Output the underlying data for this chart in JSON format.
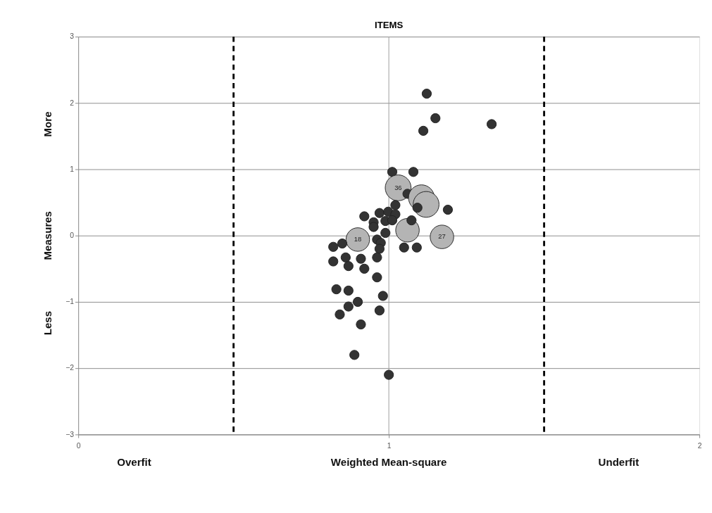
{
  "chart_data": {
    "type": "bubble",
    "title": "ITEMS",
    "xlabel": "Weighted Mean-square",
    "ylabel": "Measures",
    "annotations": [
      "More",
      "Less",
      "Overfit",
      "Underfit",
      {
        "text": "36",
        "x": 1.03,
        "y": 0.72
      },
      {
        "text": "27",
        "x": 1.171,
        "y": -0.02
      },
      {
        "text": "18",
        "x": 0.9,
        "y": -0.06
      }
    ],
    "x": [
      1.122,
      1.15,
      1.111,
      1.331,
      1.011,
      1.079,
      1.03,
      1.06,
      1.105,
      1.12,
      1.092,
      1.19,
      1.021,
      0.921,
      0.97,
      0.998,
      1.021,
      0.989,
      1.011,
      0.951,
      0.951,
      0.989,
      1.06,
      1.073,
      1.171,
      0.9,
      0.962,
      0.974,
      0.97,
      0.85,
      0.821,
      1.049,
      1.09,
      0.861,
      0.91,
      0.962,
      0.821,
      0.87,
      0.921,
      0.962,
      0.831,
      0.87,
      0.981,
      0.9,
      0.87,
      0.97,
      0.842,
      0.91,
      0.889,
      1.0
    ],
    "values": [
      2.14,
      1.77,
      1.58,
      1.68,
      0.96,
      0.96,
      0.72,
      0.63,
      0.57,
      0.47,
      0.42,
      0.39,
      0.46,
      0.29,
      0.34,
      0.36,
      0.32,
      0.22,
      0.23,
      0.2,
      0.13,
      0.04,
      0.08,
      0.23,
      -0.02,
      -0.06,
      -0.06,
      -0.11,
      -0.2,
      -0.12,
      -0.17,
      -0.18,
      -0.18,
      -0.33,
      -0.35,
      -0.33,
      -0.39,
      -0.46,
      -0.5,
      -0.63,
      -0.81,
      -0.83,
      -0.91,
      -1.0,
      -1.07,
      -1.13,
      -1.19,
      -1.34,
      -1.8,
      -2.1
    ],
    "sizes": [
      0.13,
      0.13,
      0.13,
      0.13,
      0.13,
      0.13,
      1,
      0.13,
      1,
      1,
      0.13,
      0.13,
      0.13,
      0.13,
      0.13,
      0.13,
      0.13,
      0.13,
      0.13,
      0.13,
      0.13,
      0.13,
      0.83,
      0.13,
      0.83,
      0.83,
      0.13,
      0.13,
      0.13,
      0.13,
      0.13,
      0.13,
      0.13,
      0.13,
      0.13,
      0.13,
      0.13,
      0.13,
      0.13,
      0.13,
      0.13,
      0.13,
      0.13,
      0.13,
      0.13,
      0.13,
      0.13,
      0.13,
      0.13,
      0.13
    ],
    "colors": [
      "#333333",
      "#333333",
      "#333333",
      "#333333",
      "#333333",
      "#333333",
      "#b4b4b4",
      "#333333",
      "#b4b4b4",
      "#b4b4b4",
      "#333333",
      "#333333",
      "#333333",
      "#333333",
      "#333333",
      "#333333",
      "#333333",
      "#333333",
      "#333333",
      "#333333",
      "#333333",
      "#333333",
      "#b4b4b4",
      "#333333",
      "#b4b4b4",
      "#b4b4b4",
      "#333333",
      "#333333",
      "#333333",
      "#333333",
      "#333333",
      "#333333",
      "#333333",
      "#333333",
      "#333333",
      "#333333",
      "#333333",
      "#333333",
      "#333333",
      "#333333",
      "#333333",
      "#333333",
      "#333333",
      "#333333",
      "#333333",
      "#333333",
      "#333333",
      "#333333",
      "#333333",
      "#333333"
    ],
    "xlim": [
      0,
      2
    ],
    "xticks": [
      0,
      1,
      2
    ],
    "ylim": [
      -3,
      3
    ],
    "yticks": [
      -3,
      -2,
      -1,
      0,
      1,
      2,
      3
    ],
    "ref_lines": [
      {
        "axis": "x",
        "value": 1,
        "color": "#999999",
        "line_style": "solid"
      },
      {
        "axis": "x",
        "value": 0.5,
        "color": "#000000",
        "line_style": "dashed"
      },
      {
        "axis": "x",
        "value": 1.5,
        "color": "#000000",
        "line_style": "dashed"
      }
    ],
    "grid": "y"
  }
}
